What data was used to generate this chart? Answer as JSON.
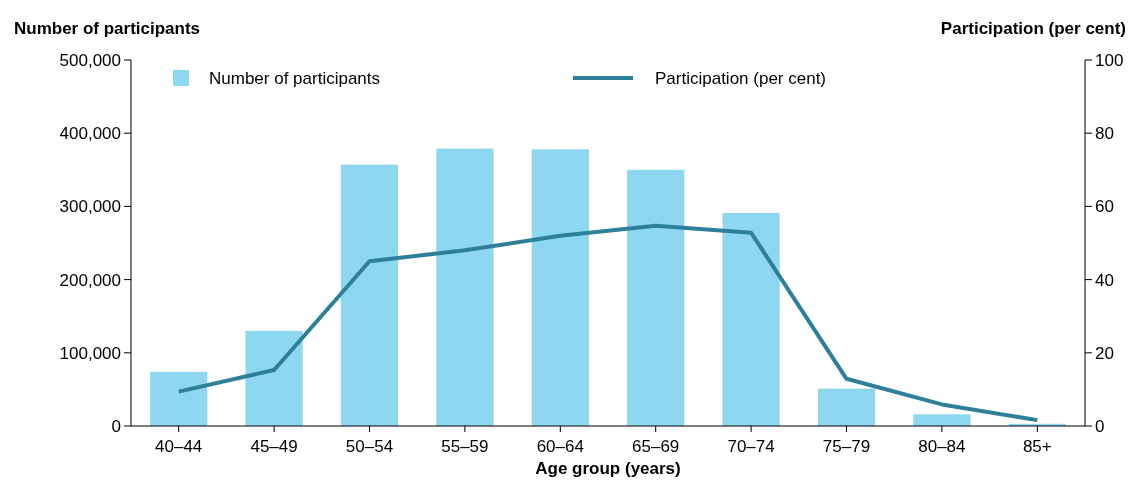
{
  "chart_data": {
    "type": "bar",
    "categories": [
      "40–44",
      "45–49",
      "50–54",
      "55–59",
      "60–64",
      "65–69",
      "70–74",
      "75–79",
      "80–84",
      "85+"
    ],
    "series": [
      {
        "name": "Number of participants",
        "color": "#8dd8f0",
        "values": [
          74000,
          130000,
          357000,
          379000,
          378000,
          350000,
          291000,
          51000,
          16000,
          3000
        ]
      },
      {
        "name": "Participation (per cent)",
        "type": "line",
        "axis": "y2",
        "color": "#2e7f98",
        "values": [
          9.4,
          15.3,
          45,
          48,
          52,
          54.7,
          52.8,
          12.9,
          5.9,
          1.6
        ]
      }
    ],
    "xlabel": "Age group (years)",
    "ylabel": "Number of participants",
    "y2label": "Participation (per cent)",
    "ylim": [
      0,
      500000
    ],
    "yticks": [
      {
        "value": 0,
        "label": "0"
      },
      {
        "value": 100000,
        "label": "100,000"
      },
      {
        "value": 200000,
        "label": "200,000"
      },
      {
        "value": 300000,
        "label": "300,000"
      },
      {
        "value": 400000,
        "label": "400,000"
      },
      {
        "value": 500000,
        "label": "500,000"
      }
    ],
    "y2lim": [
      0,
      100
    ],
    "y2ticks": [
      0,
      20,
      40,
      60,
      80,
      100
    ],
    "legend": "top",
    "grid": false,
    "marker": "none",
    "line_style": "solid"
  }
}
